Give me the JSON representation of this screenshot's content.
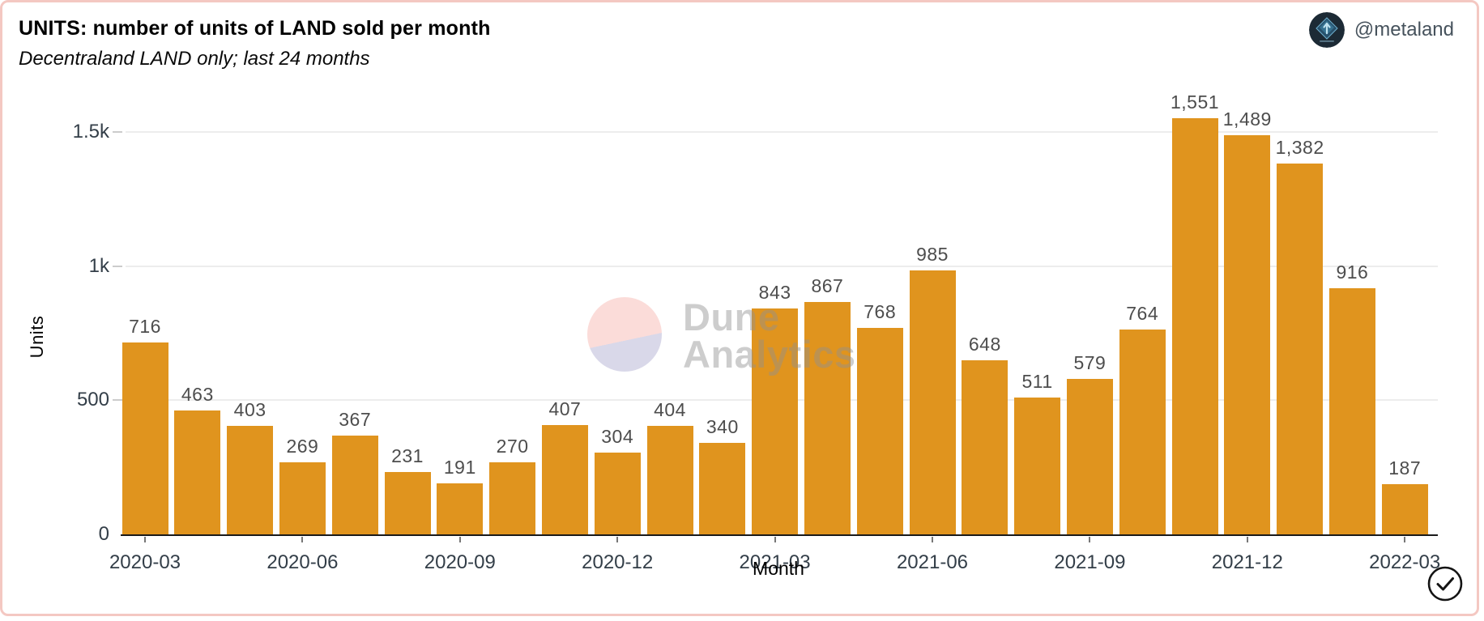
{
  "header": {
    "title": "UNITS: number of units of LAND sold per month",
    "subtitle": "Decentraland LAND only; last 24 months",
    "author_handle": "@metaland"
  },
  "icons": {
    "author_avatar": "metaland-diamond-logo",
    "verified_badge": "check-circle"
  },
  "watermark": {
    "line1": "Dune",
    "line2": "Analytics"
  },
  "colors": {
    "bar": "#E0941E",
    "frame_border": "#F4C8C2",
    "gridline": "#ededed",
    "axis_line": "#1a1a1a",
    "tick_text": "#333e48",
    "bar_label_text": "#4d4d4d",
    "watermark_pink": "#FBDCD9",
    "watermark_lavender": "#D9D8E9"
  },
  "chart_data": {
    "type": "bar",
    "title": "UNITS: number of units of LAND sold per month",
    "subtitle": "Decentraland LAND only; last 24 months",
    "xlabel": "Month",
    "ylabel": "Units",
    "grid": true,
    "legend_position": "none",
    "ylim": [
      0,
      1650
    ],
    "yticks": [
      {
        "value": 0,
        "label": "0"
      },
      {
        "value": 500,
        "label": "500"
      },
      {
        "value": 1000,
        "label": "1k"
      },
      {
        "value": 1500,
        "label": "1.5k"
      }
    ],
    "xtick_every": 3,
    "categories": [
      "2020-03",
      "2020-04",
      "2020-05",
      "2020-06",
      "2020-07",
      "2020-08",
      "2020-09",
      "2020-10",
      "2020-11",
      "2020-12",
      "2021-01",
      "2021-02",
      "2021-03",
      "2021-04",
      "2021-05",
      "2021-06",
      "2021-07",
      "2021-08",
      "2021-09",
      "2021-10",
      "2021-11",
      "2021-12",
      "2022-01",
      "2022-02",
      "2022-03"
    ],
    "values": [
      716,
      463,
      403,
      269,
      367,
      231,
      191,
      270,
      407,
      304,
      404,
      340,
      843,
      867,
      768,
      985,
      648,
      511,
      579,
      764,
      1551,
      1489,
      1382,
      916,
      187
    ],
    "data_labels": [
      "716",
      "463",
      "403",
      "269",
      "367",
      "231",
      "191",
      "270",
      "407",
      "304",
      "404",
      "340",
      "843",
      "867",
      "768",
      "985",
      "648",
      "511",
      "579",
      "764",
      "1,551",
      "1,489",
      "1,382",
      "916",
      "187"
    ]
  }
}
